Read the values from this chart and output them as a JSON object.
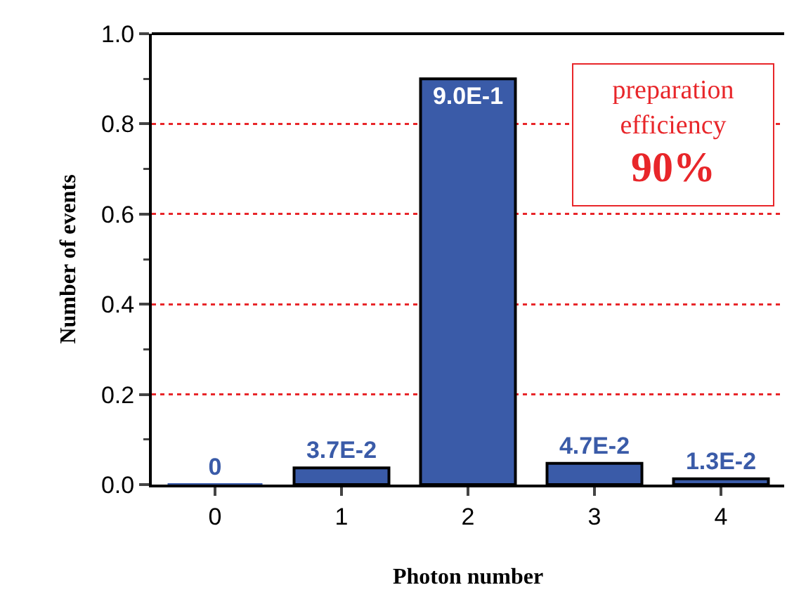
{
  "chart_data": {
    "type": "bar",
    "xlabel": "Photon number",
    "ylabel": "Number of events",
    "categories": [
      "0",
      "1",
      "2",
      "3",
      "4"
    ],
    "values": [
      0,
      0.037,
      0.9,
      0.047,
      0.013
    ],
    "value_labels": [
      "0",
      "3.7E-2",
      "9.0E-1",
      "4.7E-2",
      "1.3E-2"
    ],
    "color": "#3a5ba8",
    "ylim": [
      0,
      1.0
    ],
    "yticks": [
      {
        "value": 0,
        "label": "0.0"
      },
      {
        "value": 0.2,
        "label": "0.2"
      },
      {
        "value": 0.4,
        "label": "0.4"
      },
      {
        "value": 0.6,
        "label": "0.6"
      },
      {
        "value": 0.8,
        "label": "0.8"
      },
      {
        "value": 1.0,
        "label": "1.0"
      }
    ],
    "grid": "y",
    "annotations": [
      "preparation efficiency",
      "90%"
    ]
  }
}
